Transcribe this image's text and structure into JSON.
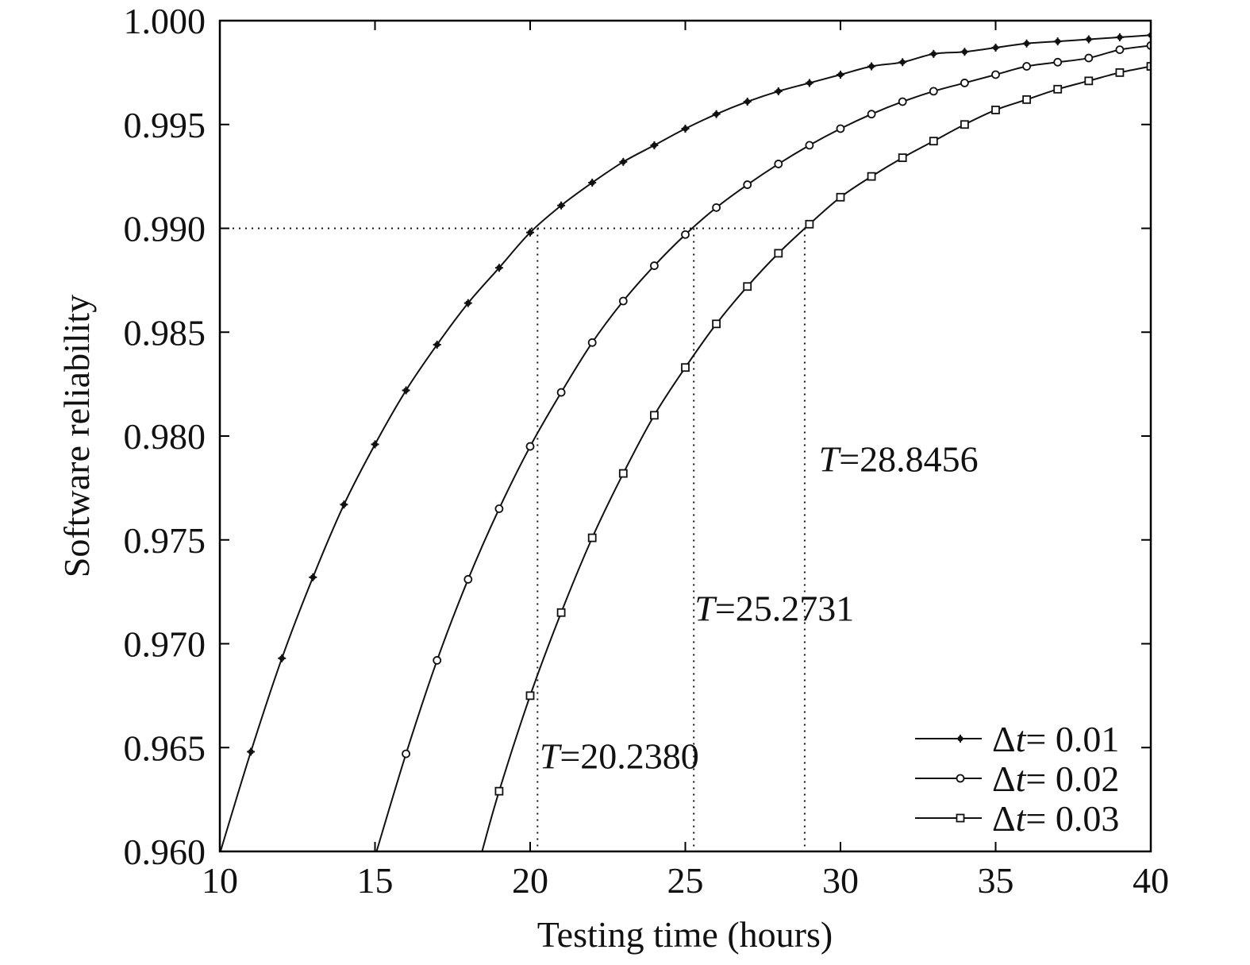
{
  "chart_data": {
    "type": "line",
    "xlabel": "Testing time (hours)",
    "ylabel": "Software reliability",
    "xlim": [
      10,
      40
    ],
    "ylim": [
      0.96,
      1.0
    ],
    "xticks": [
      10,
      15,
      20,
      25,
      30,
      35,
      40
    ],
    "xtick_labels": [
      "10",
      "15",
      "20",
      "25",
      "30",
      "35",
      "40"
    ],
    "yticks": [
      0.96,
      0.965,
      0.97,
      0.975,
      0.98,
      0.985,
      0.99,
      0.995,
      1.0
    ],
    "ytick_labels": [
      "0.960",
      "0.965",
      "0.970",
      "0.975",
      "0.980",
      "0.985",
      "0.990",
      "0.995",
      "1.000"
    ],
    "grid": false,
    "legend_position": "bottom-right",
    "series": [
      {
        "name": "Δt= 0.01",
        "legend_prefix": "Δ",
        "legend_italic": "t",
        "legend_suffix": "= 0.01",
        "marker": "plus",
        "x": [
          10,
          11,
          12,
          13,
          14,
          15,
          16,
          17,
          18,
          19,
          20,
          21,
          22,
          23,
          24,
          25,
          26,
          27,
          28,
          29,
          30,
          31,
          32,
          33,
          34,
          35,
          36,
          37,
          38,
          39,
          40
        ],
        "y": [
          0.9599,
          0.9648,
          0.9693,
          0.9732,
          0.9767,
          0.9796,
          0.9822,
          0.9844,
          0.9864,
          0.9881,
          0.9898,
          0.9911,
          0.9922,
          0.9932,
          0.994,
          0.9948,
          0.9955,
          0.9961,
          0.9966,
          0.997,
          0.9974,
          0.9978,
          0.998,
          0.9984,
          0.9985,
          0.9987,
          0.9989,
          0.999,
          0.9991,
          0.9992,
          0.9993
        ]
      },
      {
        "name": "Δt= 0.02",
        "legend_prefix": "Δ",
        "legend_italic": "t",
        "legend_suffix": "= 0.02",
        "marker": "circle",
        "x": [
          15.05,
          16,
          17,
          18,
          19,
          20,
          21,
          22,
          23,
          24,
          25,
          26,
          27,
          28,
          29,
          30,
          31,
          32,
          33,
          34,
          35,
          36,
          37,
          38,
          39,
          40
        ],
        "y": [
          0.96,
          0.9647,
          0.9692,
          0.9731,
          0.9765,
          0.9795,
          0.9821,
          0.9845,
          0.9865,
          0.9882,
          0.9897,
          0.991,
          0.9921,
          0.9931,
          0.994,
          0.9948,
          0.9955,
          0.9961,
          0.9966,
          0.997,
          0.9974,
          0.9978,
          0.998,
          0.9982,
          0.9986,
          0.9988
        ]
      },
      {
        "name": "Δt= 0.03",
        "legend_prefix": "Δ",
        "legend_italic": "t",
        "legend_suffix": "= 0.03",
        "marker": "square",
        "x": [
          18.45,
          19,
          20,
          21,
          22,
          23,
          24,
          25,
          26,
          27,
          28,
          29,
          30,
          31,
          32,
          33,
          34,
          35,
          36,
          37,
          38,
          39,
          40
        ],
        "y": [
          0.96,
          0.9629,
          0.9675,
          0.9715,
          0.9751,
          0.9782,
          0.981,
          0.9833,
          0.9854,
          0.9872,
          0.9888,
          0.9902,
          0.9915,
          0.9925,
          0.9934,
          0.9942,
          0.995,
          0.9957,
          0.9962,
          0.9967,
          0.9971,
          0.9975,
          0.9978
        ]
      }
    ],
    "reference": {
      "y": 0.99,
      "x_values": [
        20.238,
        25.2731,
        28.8456
      ]
    },
    "annotations": [
      {
        "italic": "T",
        "text": "=20.2380",
        "x": 20.3,
        "y": 0.964
      },
      {
        "italic": "T",
        "text": "=25.2731",
        "x": 25.3,
        "y": 0.9711
      },
      {
        "italic": "T",
        "text": "=28.8456",
        "x": 29.3,
        "y": 0.9783
      }
    ]
  }
}
